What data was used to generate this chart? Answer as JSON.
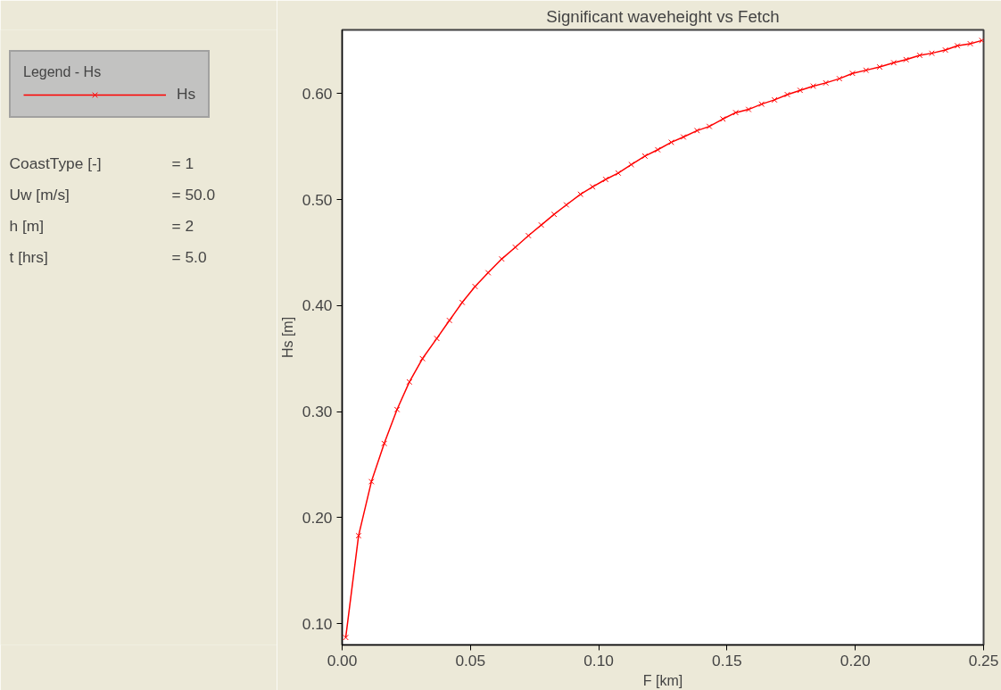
{
  "chart_data": {
    "type": "line",
    "title": "Significant waveheight vs Fetch",
    "xlabel": "F [km]",
    "ylabel": "Hs [m]",
    "legend_title": "Legend - Hs",
    "x": [
      0.0014,
      0.0064,
      0.0114,
      0.0164,
      0.0214,
      0.0262,
      0.0313,
      0.0369,
      0.0418,
      0.0468,
      0.0518,
      0.0569,
      0.0622,
      0.0675,
      0.0726,
      0.0776,
      0.0826,
      0.0874,
      0.0929,
      0.0976,
      0.1027,
      0.1076,
      0.1127,
      0.118,
      0.123,
      0.1283,
      0.133,
      0.1383,
      0.1431,
      0.1484,
      0.1534,
      0.1584,
      0.1635,
      0.1685,
      0.1735,
      0.1785,
      0.1836,
      0.1885,
      0.1938,
      0.1989,
      0.2042,
      0.2095,
      0.215,
      0.2198,
      0.2251,
      0.2298,
      0.2351,
      0.2398,
      0.2448,
      0.2493
    ],
    "series": [
      {
        "name": "Hs",
        "color": "#ff0000",
        "values": [
          0.087,
          0.183,
          0.234,
          0.27,
          0.302,
          0.328,
          0.35,
          0.369,
          0.386,
          0.403,
          0.418,
          0.431,
          0.444,
          0.455,
          0.466,
          0.476,
          0.486,
          0.495,
          0.505,
          0.512,
          0.519,
          0.525,
          0.533,
          0.541,
          0.547,
          0.554,
          0.559,
          0.565,
          0.569,
          0.576,
          0.582,
          0.585,
          0.59,
          0.594,
          0.599,
          0.603,
          0.607,
          0.61,
          0.614,
          0.619,
          0.622,
          0.625,
          0.629,
          0.632,
          0.636,
          0.638,
          0.641,
          0.645,
          0.647,
          0.65
        ]
      }
    ],
    "xlim": [
      0,
      0.25
    ],
    "xticks": [
      {
        "value": 0,
        "label": "0.00"
      },
      {
        "value": 0.05,
        "label": "0.05"
      },
      {
        "value": 0.1,
        "label": "0.10"
      },
      {
        "value": 0.15,
        "label": "0.15"
      },
      {
        "value": 0.2,
        "label": "0.20"
      },
      {
        "value": 0.25,
        "label": "0.25"
      }
    ],
    "ylim": [
      0.08,
      0.66
    ],
    "yticks": [
      {
        "value": 0.1,
        "label": "0.10"
      },
      {
        "value": 0.2,
        "label": "0.20"
      },
      {
        "value": 0.3,
        "label": "0.30"
      },
      {
        "value": 0.4,
        "label": "0.40"
      },
      {
        "value": 0.5,
        "label": "0.50"
      },
      {
        "value": 0.6,
        "label": "0.60"
      }
    ],
    "annotations": [
      "CoastType [-] = 1",
      "Uw [m/s] = 50.0",
      "h [m] = 2",
      "t [hrs] = 5.0"
    ],
    "grid": false,
    "legend": "top left",
    "marker": "cross",
    "line_style": "solid"
  }
}
